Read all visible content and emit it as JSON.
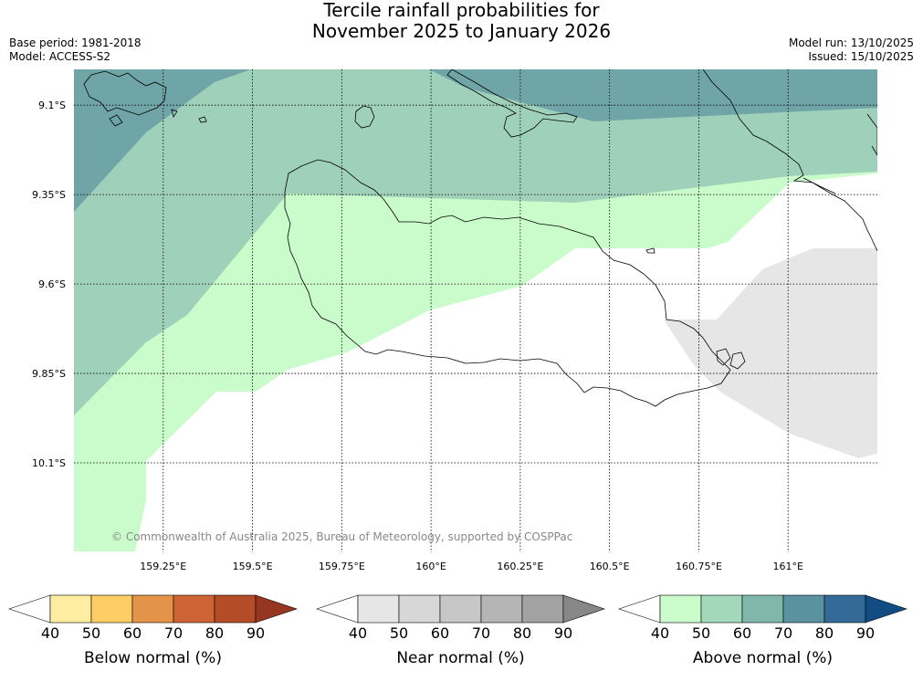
{
  "header": {
    "title_line1": "Tercile rainfall probabilities for",
    "title_line2": "November 2025 to January 2026",
    "base_period": "Base period: 1981-2018",
    "model": "Model: ACCESS-S2",
    "model_run": "Model run: 13/10/2025",
    "issued": "Issued: 15/10/2025"
  },
  "map": {
    "lat_ticks": [
      "9.1°S",
      "9.35°S",
      "9.6°S",
      "9.85°S",
      "10.1°S"
    ],
    "lon_ticks": [
      "159.25°E",
      "159.5°E",
      "159.75°E",
      "160°E",
      "160.25°E",
      "160.5°E",
      "160.75°E",
      "161°E"
    ],
    "lat_values": [
      -9.1,
      -9.35,
      -9.6,
      -9.85,
      -10.1
    ],
    "lon_values": [
      159.25,
      159.5,
      159.75,
      160.0,
      160.25,
      160.5,
      160.75,
      161.0
    ],
    "extent": {
      "lon_min": 159.0,
      "lon_max": 161.25,
      "lat_max": -9.0,
      "lat_min": -10.35
    },
    "copyright": "© Commonwealth of Australia 2025, Bureau of Meteorology, supported by COSPPac",
    "grid": true,
    "colors": {
      "above_60_70": "#70a5a8",
      "above_50_60": "#9fd0ba",
      "above_40_50": "#c9fcca",
      "near_40_50": "#e6e6e6",
      "background": "#ffffff",
      "coastline": "#000000"
    }
  },
  "colorbars": [
    {
      "name": "below",
      "title": "Below normal (%)",
      "ticks": [
        "40",
        "50",
        "60",
        "70",
        "80",
        "90"
      ],
      "colors": [
        "#ffffff",
        "#ffeea1",
        "#ffcd65",
        "#e39448",
        "#ce6435",
        "#b34c27",
        "#963520"
      ]
    },
    {
      "name": "near",
      "title": "Near normal (%)",
      "ticks": [
        "40",
        "50",
        "60",
        "70",
        "80",
        "90"
      ],
      "colors": [
        "#ffffff",
        "#e6e6e6",
        "#d7d7d7",
        "#c7c7c7",
        "#b5b5b5",
        "#a2a2a2",
        "#878787"
      ]
    },
    {
      "name": "above",
      "title": "Above normal (%)",
      "ticks": [
        "40",
        "50",
        "60",
        "70",
        "80",
        "90"
      ],
      "colors": [
        "#ffffff",
        "#c9fcca",
        "#a4d8bb",
        "#81b6ab",
        "#5a92a0",
        "#346a97",
        "#114d82"
      ]
    }
  ]
}
